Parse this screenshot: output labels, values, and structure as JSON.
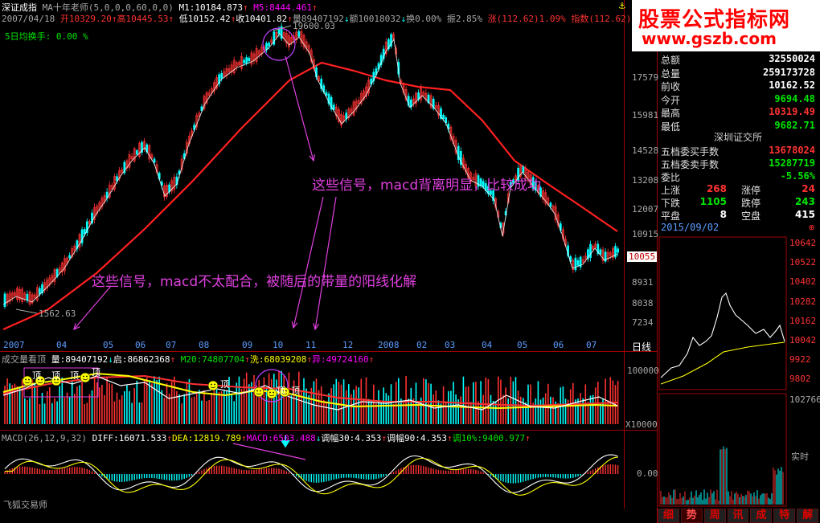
{
  "header": {
    "index_name": "深证成指",
    "indicator": "MA十年老师(5,0,0,0,60,0,0)",
    "m1": "M1:10184.873",
    "m5": "M5:8444.461",
    "m5_arrow": "↑",
    "date": "2007/04/18",
    "open": "开10329.20",
    "high": "高10445.53",
    "low": "低10152.42",
    "close": "收10401.82",
    "volume": "量89407192",
    "amount": "额10018032",
    "turnover": "换0.00%",
    "amplitude": "振2.85%",
    "change": "涨(112.62)1.09%",
    "index_change": "指数(112.62)1.",
    "avg_turnover": "5日均换手: 0.00 %"
  },
  "watermark": {
    "line1": "股票公式指标网",
    "line2": "www.gszb.com"
  },
  "price_axis": [
    "19173",
    "17579",
    "15981",
    "14528",
    "13208",
    "12007",
    "10915",
    "10055",
    "8931",
    "8038",
    "7234"
  ],
  "price_axis_highlight": "10055",
  "time_axis": [
    "2007",
    "04",
    "05",
    "06",
    "07",
    "08",
    "09",
    "10",
    "11",
    "12",
    "2008",
    "02",
    "03",
    "04",
    "05",
    "06",
    "07"
  ],
  "period_label": "日线",
  "chart_labels": {
    "peak": "19600.03",
    "trough": "1562.63"
  },
  "annotations": {
    "upper": "这些信号，macd背离明显，比较成功",
    "lower": "这些信号，macd不太配合，被随后的带量的阳线化解"
  },
  "volume_panel": {
    "title": "成交量看顶",
    "vol": "量:89407192",
    "vol_arrow": "↓",
    "qi": "启:86862368",
    "qi_arrow": "↑",
    "m20": "M20:74807704",
    "m20_arrow": "↑",
    "xi": "洗:68039208",
    "xi_arrow": "↑",
    "yi": "异:49724160",
    "yi_arrow": "↑",
    "top_label": "顶",
    "axis_top": "100000",
    "axis_bottom": "X10000"
  },
  "macd_panel": {
    "title": "MACD(26,12,9,32)",
    "diff": "DIFF:16071.533",
    "diff_arrow": "↑",
    "dea": "DEA:12819.789",
    "dea_arrow": "↑",
    "macd": "MACD:6503.488",
    "macd_arrow": "↓",
    "tf30": "调幅30:4.353",
    "tf30_arrow": "↑",
    "tf90": "调幅90:4.353",
    "tf90_arrow": "↑",
    "tf10": "调10%:9400.977",
    "tf10_arrow": "↑",
    "axis_zero": "0.00",
    "watermark": "飞狐交易师"
  },
  "quote": {
    "rows": [
      {
        "label": "总额",
        "value": "32550024",
        "color": "#ffffff"
      },
      {
        "label": "总量",
        "value": "259173728",
        "color": "#ffffff"
      },
      {
        "label": "前收",
        "value": "10162.52",
        "color": "#ffffff"
      },
      {
        "label": "今开",
        "value": "9694.48",
        "color": "#00e600"
      },
      {
        "label": "最高",
        "value": "10319.49",
        "color": "#ff3232"
      },
      {
        "label": "最低",
        "value": "9682.71",
        "color": "#00e600"
      }
    ],
    "exchange": "深圳证交所",
    "buy_label": "五档委买手数",
    "buy_value": "13678024",
    "sell_label": "五档委卖手数",
    "sell_value": "15287719",
    "ratio_label": "委比",
    "ratio_value": "-5.56%",
    "up_label": "上涨",
    "up_value": "268",
    "limit_up_label": "涨停",
    "limit_up_value": "24",
    "down_label": "下跌",
    "down_value": "1105",
    "limit_down_label": "跌停",
    "limit_down_value": "243",
    "flat_label": "平盘",
    "flat_value": "8",
    "empty_label": "空盘",
    "empty_value": "415"
  },
  "intraday": {
    "date": "2015/09/02",
    "axis": [
      "10642",
      "10522",
      "10402",
      "10282",
      "10162",
      "10042",
      "9922",
      "9802"
    ],
    "vol_axis": "102766",
    "realtime": "实时"
  },
  "bottom_tabs": [
    "细",
    "势",
    "周",
    "讯",
    "成",
    "特",
    "解"
  ],
  "active_tab": "势",
  "colors": {
    "up": "#ff3232",
    "down": "#00ffff",
    "ma": "#ff2020",
    "diff": "#ffffff",
    "dea": "#ffff00"
  }
}
